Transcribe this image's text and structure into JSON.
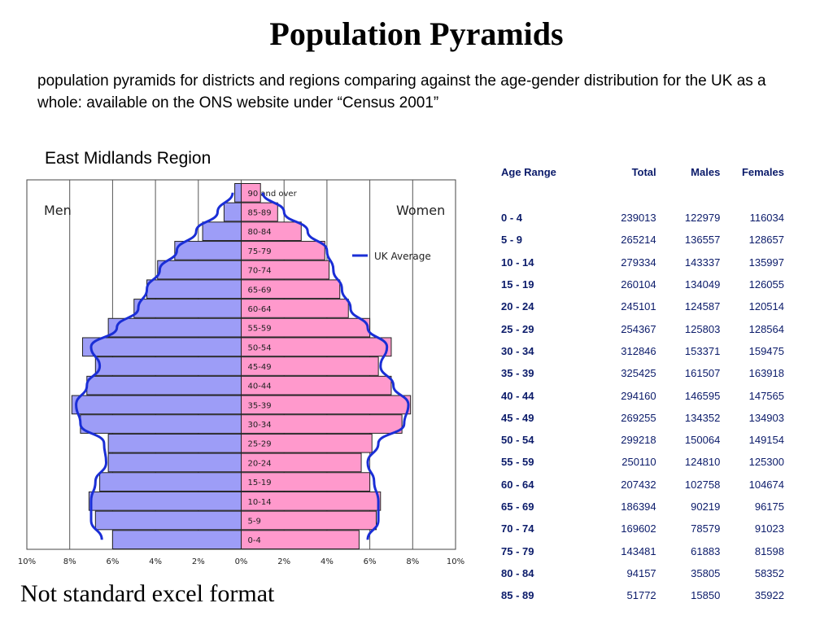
{
  "page": {
    "title": "Population Pyramids",
    "subtitle": "population pyramids for districts and regions comparing against the age-gender distribution for the UK as a whole: available on the ONS website under “Census 2001”",
    "region": "East Midlands Region",
    "footer_note": "Not standard excel format"
  },
  "colors": {
    "men_bar": "#9d9df7",
    "women_bar": "#ff99cc",
    "uk_line": "#1a2ed6",
    "table_text": "#0b1b6a"
  },
  "chart_data": {
    "type": "bar",
    "orientation": "horizontal-pyramid",
    "left_label": "Men",
    "right_label": "Women",
    "legend_label": "UK Average",
    "legend_placement": "top-right",
    "x_ticks": [
      "10%",
      "8%",
      "6%",
      "4%",
      "2%",
      "0%",
      "2%",
      "4%",
      "6%",
      "8%",
      "10%"
    ],
    "xlim": [
      -10,
      10
    ],
    "grid": true,
    "categories": [
      "0-4",
      "5-9",
      "10-14",
      "15-19",
      "20-24",
      "25-29",
      "30-34",
      "35-39",
      "40-44",
      "45-49",
      "50-54",
      "55-59",
      "60-64",
      "65-69",
      "70-74",
      "75-79",
      "80-84",
      "85-89",
      "90 and over"
    ],
    "series": [
      {
        "name": "Men",
        "values": [
          6.0,
          6.8,
          7.1,
          6.6,
          6.2,
          6.2,
          7.5,
          7.9,
          7.2,
          6.8,
          7.4,
          6.2,
          5.0,
          4.4,
          3.9,
          3.1,
          1.8,
          0.8,
          0.3
        ]
      },
      {
        "name": "Women",
        "values": [
          5.5,
          6.3,
          6.5,
          6.0,
          5.6,
          6.1,
          7.5,
          7.9,
          7.0,
          6.4,
          7.0,
          6.0,
          5.0,
          4.6,
          4.1,
          3.9,
          2.8,
          1.7,
          0.9
        ]
      },
      {
        "name": "UK Average",
        "values_men": [
          6.5,
          7.0,
          7.0,
          6.8,
          6.3,
          6.4,
          7.5,
          7.7,
          7.2,
          6.6,
          7.0,
          5.8,
          4.8,
          4.4,
          3.8,
          3.0,
          2.1,
          1.1,
          0.4
        ],
        "values_women": [
          5.9,
          6.4,
          6.4,
          6.2,
          5.9,
          6.4,
          7.6,
          7.8,
          7.1,
          6.5,
          6.8,
          5.9,
          5.1,
          4.7,
          4.3,
          4.0,
          3.1,
          2.0,
          1.0
        ]
      }
    ]
  },
  "table": {
    "headers": [
      "Age Range",
      "Total",
      "Males",
      "Females"
    ],
    "rows": [
      [
        "0 - 4",
        "239013",
        "122979",
        "116034"
      ],
      [
        "5 - 9",
        "265214",
        "136557",
        "128657"
      ],
      [
        "10 - 14",
        "279334",
        "143337",
        "135997"
      ],
      [
        "15 - 19",
        "260104",
        "134049",
        "126055"
      ],
      [
        "20 - 24",
        "245101",
        "124587",
        "120514"
      ],
      [
        "25 - 29",
        "254367",
        "125803",
        "128564"
      ],
      [
        "30 - 34",
        "312846",
        "153371",
        "159475"
      ],
      [
        "35 - 39",
        "325425",
        "161507",
        "163918"
      ],
      [
        "40 - 44",
        "294160",
        "146595",
        "147565"
      ],
      [
        "45 - 49",
        "269255",
        "134352",
        "134903"
      ],
      [
        "50 - 54",
        "299218",
        "150064",
        "149154"
      ],
      [
        "55 - 59",
        "250110",
        "124810",
        "125300"
      ],
      [
        "60 - 64",
        "207432",
        "102758",
        "104674"
      ],
      [
        "65 - 69",
        "186394",
        "90219",
        "96175"
      ],
      [
        "70 - 74",
        "169602",
        "78579",
        "91023"
      ],
      [
        "75 - 79",
        "143481",
        "61883",
        "81598"
      ],
      [
        "80 - 84",
        "94157",
        "35805",
        "58352"
      ],
      [
        "85 - 89",
        "51772",
        "15850",
        "35922"
      ]
    ]
  }
}
